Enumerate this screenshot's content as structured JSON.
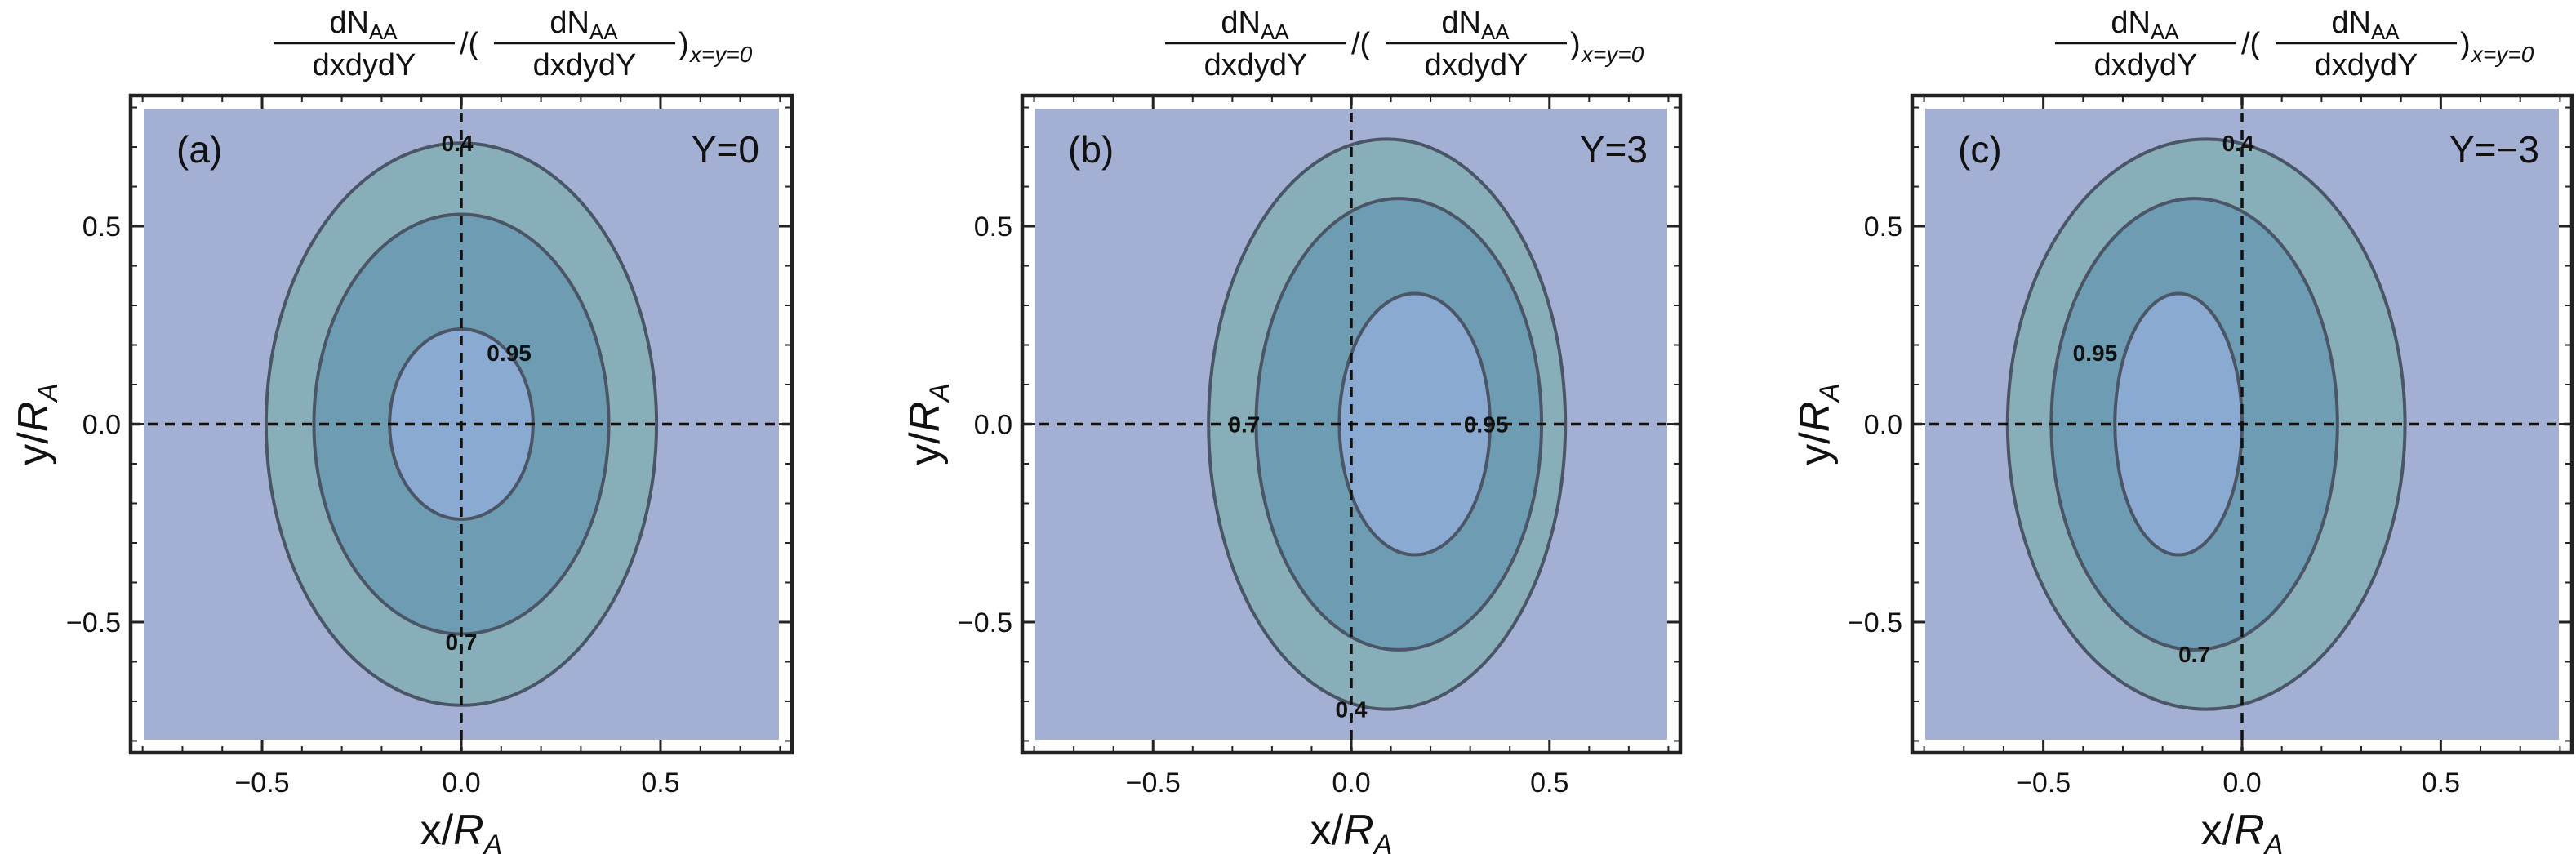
{
  "chart_data": [
    {
      "type": "contour",
      "panel_label": "(a)",
      "rapidity_label": "Y=0",
      "title": {
        "numerator": "dN",
        "numerator_sub": "AA",
        "denominator": "dxdydY",
        "separator": "/(",
        "closing": ")",
        "subscript": "x=y=0"
      },
      "xlabel": "x/",
      "xlabel_italic": "R",
      "xlabel_sub": "A",
      "ylabel": "y/",
      "ylabel_italic": "R",
      "ylabel_sub": "A",
      "xlim": [
        -0.83,
        0.83
      ],
      "ylim": [
        -0.83,
        0.83
      ],
      "xticks": [
        "-0.5",
        "0.0",
        "0.5"
      ],
      "yticks": [
        "-0.5",
        "0.0",
        "0.5"
      ],
      "xtick_values": [
        -0.5,
        0.0,
        0.5
      ],
      "ytick_values": [
        -0.5,
        0.0,
        0.5
      ],
      "levels": [
        {
          "value": 0.4,
          "label": "0.4",
          "center": [
            0.0,
            0.0
          ],
          "semi_axes": [
            0.49,
            0.71
          ],
          "label_at": [
            -0.01,
            0.71
          ]
        },
        {
          "value": 0.7,
          "label": "0.7",
          "center": [
            0.0,
            0.0
          ],
          "semi_axes": [
            0.37,
            0.53
          ],
          "label_at": [
            0.0,
            -0.55
          ]
        },
        {
          "value": 0.95,
          "label": "0.95",
          "center": [
            0.0,
            0.0
          ],
          "semi_axes": [
            0.18,
            0.24
          ],
          "label_at": [
            0.12,
            0.18
          ]
        }
      ],
      "colors": {
        "background": "#a3b0d4",
        "band_outer": "#88afb9",
        "band_middle": "#6e9cb2",
        "core": "#8aaad2",
        "contour_line": "#4a5566"
      }
    },
    {
      "type": "contour",
      "panel_label": "(b)",
      "rapidity_label": "Y=3",
      "title": {
        "numerator": "dN",
        "numerator_sub": "AA",
        "denominator": "dxdydY",
        "separator": "/(",
        "closing": ")",
        "subscript": "x=y=0"
      },
      "xlabel": "x/",
      "xlabel_italic": "R",
      "xlabel_sub": "A",
      "ylabel": "y/",
      "ylabel_italic": "R",
      "ylabel_sub": "A",
      "xlim": [
        -0.83,
        0.83
      ],
      "ylim": [
        -0.83,
        0.83
      ],
      "xticks": [
        "-0.5",
        "0.0",
        "0.5"
      ],
      "yticks": [
        "-0.5",
        "0.0",
        "0.5"
      ],
      "xtick_values": [
        -0.5,
        0.0,
        0.5
      ],
      "ytick_values": [
        -0.5,
        0.0,
        0.5
      ],
      "levels": [
        {
          "value": 0.4,
          "label": "0.4",
          "center": [
            0.09,
            0.0
          ],
          "semi_axes": [
            0.45,
            0.72
          ],
          "label_at": [
            0.0,
            -0.72
          ]
        },
        {
          "value": 0.7,
          "label": "0.7",
          "center": [
            0.12,
            0.0
          ],
          "semi_axes": [
            0.36,
            0.57
          ],
          "label_at": [
            -0.27,
            0.0
          ]
        },
        {
          "value": 0.95,
          "label": "0.95",
          "center": [
            0.16,
            0.0
          ],
          "semi_axes": [
            0.19,
            0.33
          ],
          "label_at": [
            0.34,
            0.0
          ]
        }
      ],
      "colors": {
        "background": "#a3b0d4",
        "band_outer": "#88afb9",
        "band_middle": "#6e9cb2",
        "core": "#8aaad2",
        "contour_line": "#4a5566"
      }
    },
    {
      "type": "contour",
      "panel_label": "(c)",
      "rapidity_label": "Y=−3",
      "title": {
        "numerator": "dN",
        "numerator_sub": "AA",
        "denominator": "dxdydY",
        "separator": "/(",
        "closing": ")",
        "subscript": "x=y=0"
      },
      "xlabel": "x/",
      "xlabel_italic": "R",
      "xlabel_sub": "A",
      "ylabel": "y/",
      "ylabel_italic": "R",
      "ylabel_sub": "A",
      "xlim": [
        -0.83,
        0.83
      ],
      "ylim": [
        -0.83,
        0.83
      ],
      "xticks": [
        "-0.5",
        "0.0",
        "0.5"
      ],
      "yticks": [
        "-0.5",
        "0.0",
        "0.5"
      ],
      "xtick_values": [
        -0.5,
        0.0,
        0.5
      ],
      "ytick_values": [
        -0.5,
        0.0,
        0.5
      ],
      "levels": [
        {
          "value": 0.4,
          "label": "0.4",
          "center": [
            -0.09,
            0.0
          ],
          "semi_axes": [
            0.5,
            0.72
          ],
          "label_at": [
            -0.01,
            0.71
          ]
        },
        {
          "value": 0.7,
          "label": "0.7",
          "center": [
            -0.12,
            0.0
          ],
          "semi_axes": [
            0.36,
            0.57
          ],
          "label_at": [
            -0.12,
            -0.58
          ]
        },
        {
          "value": 0.95,
          "label": "0.95",
          "center": [
            -0.16,
            0.0
          ],
          "semi_axes": [
            0.16,
            0.33
          ],
          "label_at": [
            -0.37,
            0.18
          ]
        }
      ],
      "colors": {
        "background": "#a3b0d4",
        "band_outer": "#88afb9",
        "band_middle": "#6e9cb2",
        "core": "#8aaad2",
        "contour_line": "#4a5566"
      }
    }
  ]
}
